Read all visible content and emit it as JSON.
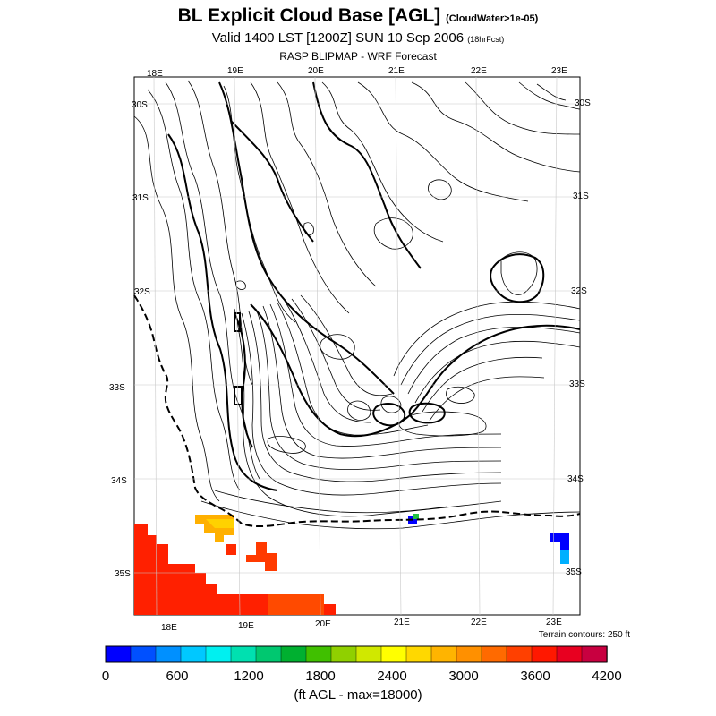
{
  "header": {
    "title": "BL Explicit Cloud Base [AGL]",
    "title_note": "(CloudWater>1e-05)",
    "subtitle": "Valid 1400 LST [1200Z] SUN 10 Sep 2006",
    "subtitle_note": "(18hrFcst)",
    "source": "RASP BLIPMAP - WRF Forecast"
  },
  "map": {
    "lon_labels_top": [
      "18E",
      "19E",
      "20E",
      "21E",
      "22E",
      "23E"
    ],
    "lon_labels_bottom": [
      "18E",
      "19E",
      "20E",
      "21E",
      "22E",
      "23E"
    ],
    "lat_labels_left": [
      "30S",
      "31S",
      "32S",
      "33S",
      "34S",
      "35S"
    ],
    "lat_labels_right": [
      "30S",
      "31S",
      "32S",
      "33S",
      "34S",
      "35S"
    ],
    "terrain_note": "Terrain contours: 250 ft"
  },
  "colorbar": {
    "colors": [
      "#0000ff",
      "#0050ff",
      "#0090ff",
      "#00c8ff",
      "#00f0f0",
      "#00e0b0",
      "#00c870",
      "#00b030",
      "#40c000",
      "#90d000",
      "#d0e800",
      "#ffff00",
      "#ffd800",
      "#ffb400",
      "#ff9000",
      "#ff6a00",
      "#ff4000",
      "#ff1800",
      "#e80020",
      "#c80040"
    ],
    "ticks": [
      "0",
      "600",
      "1200",
      "1800",
      "2400",
      "3000",
      "3600",
      "4200"
    ],
    "unit_label": "(ft AGL - max=18000)"
  }
}
